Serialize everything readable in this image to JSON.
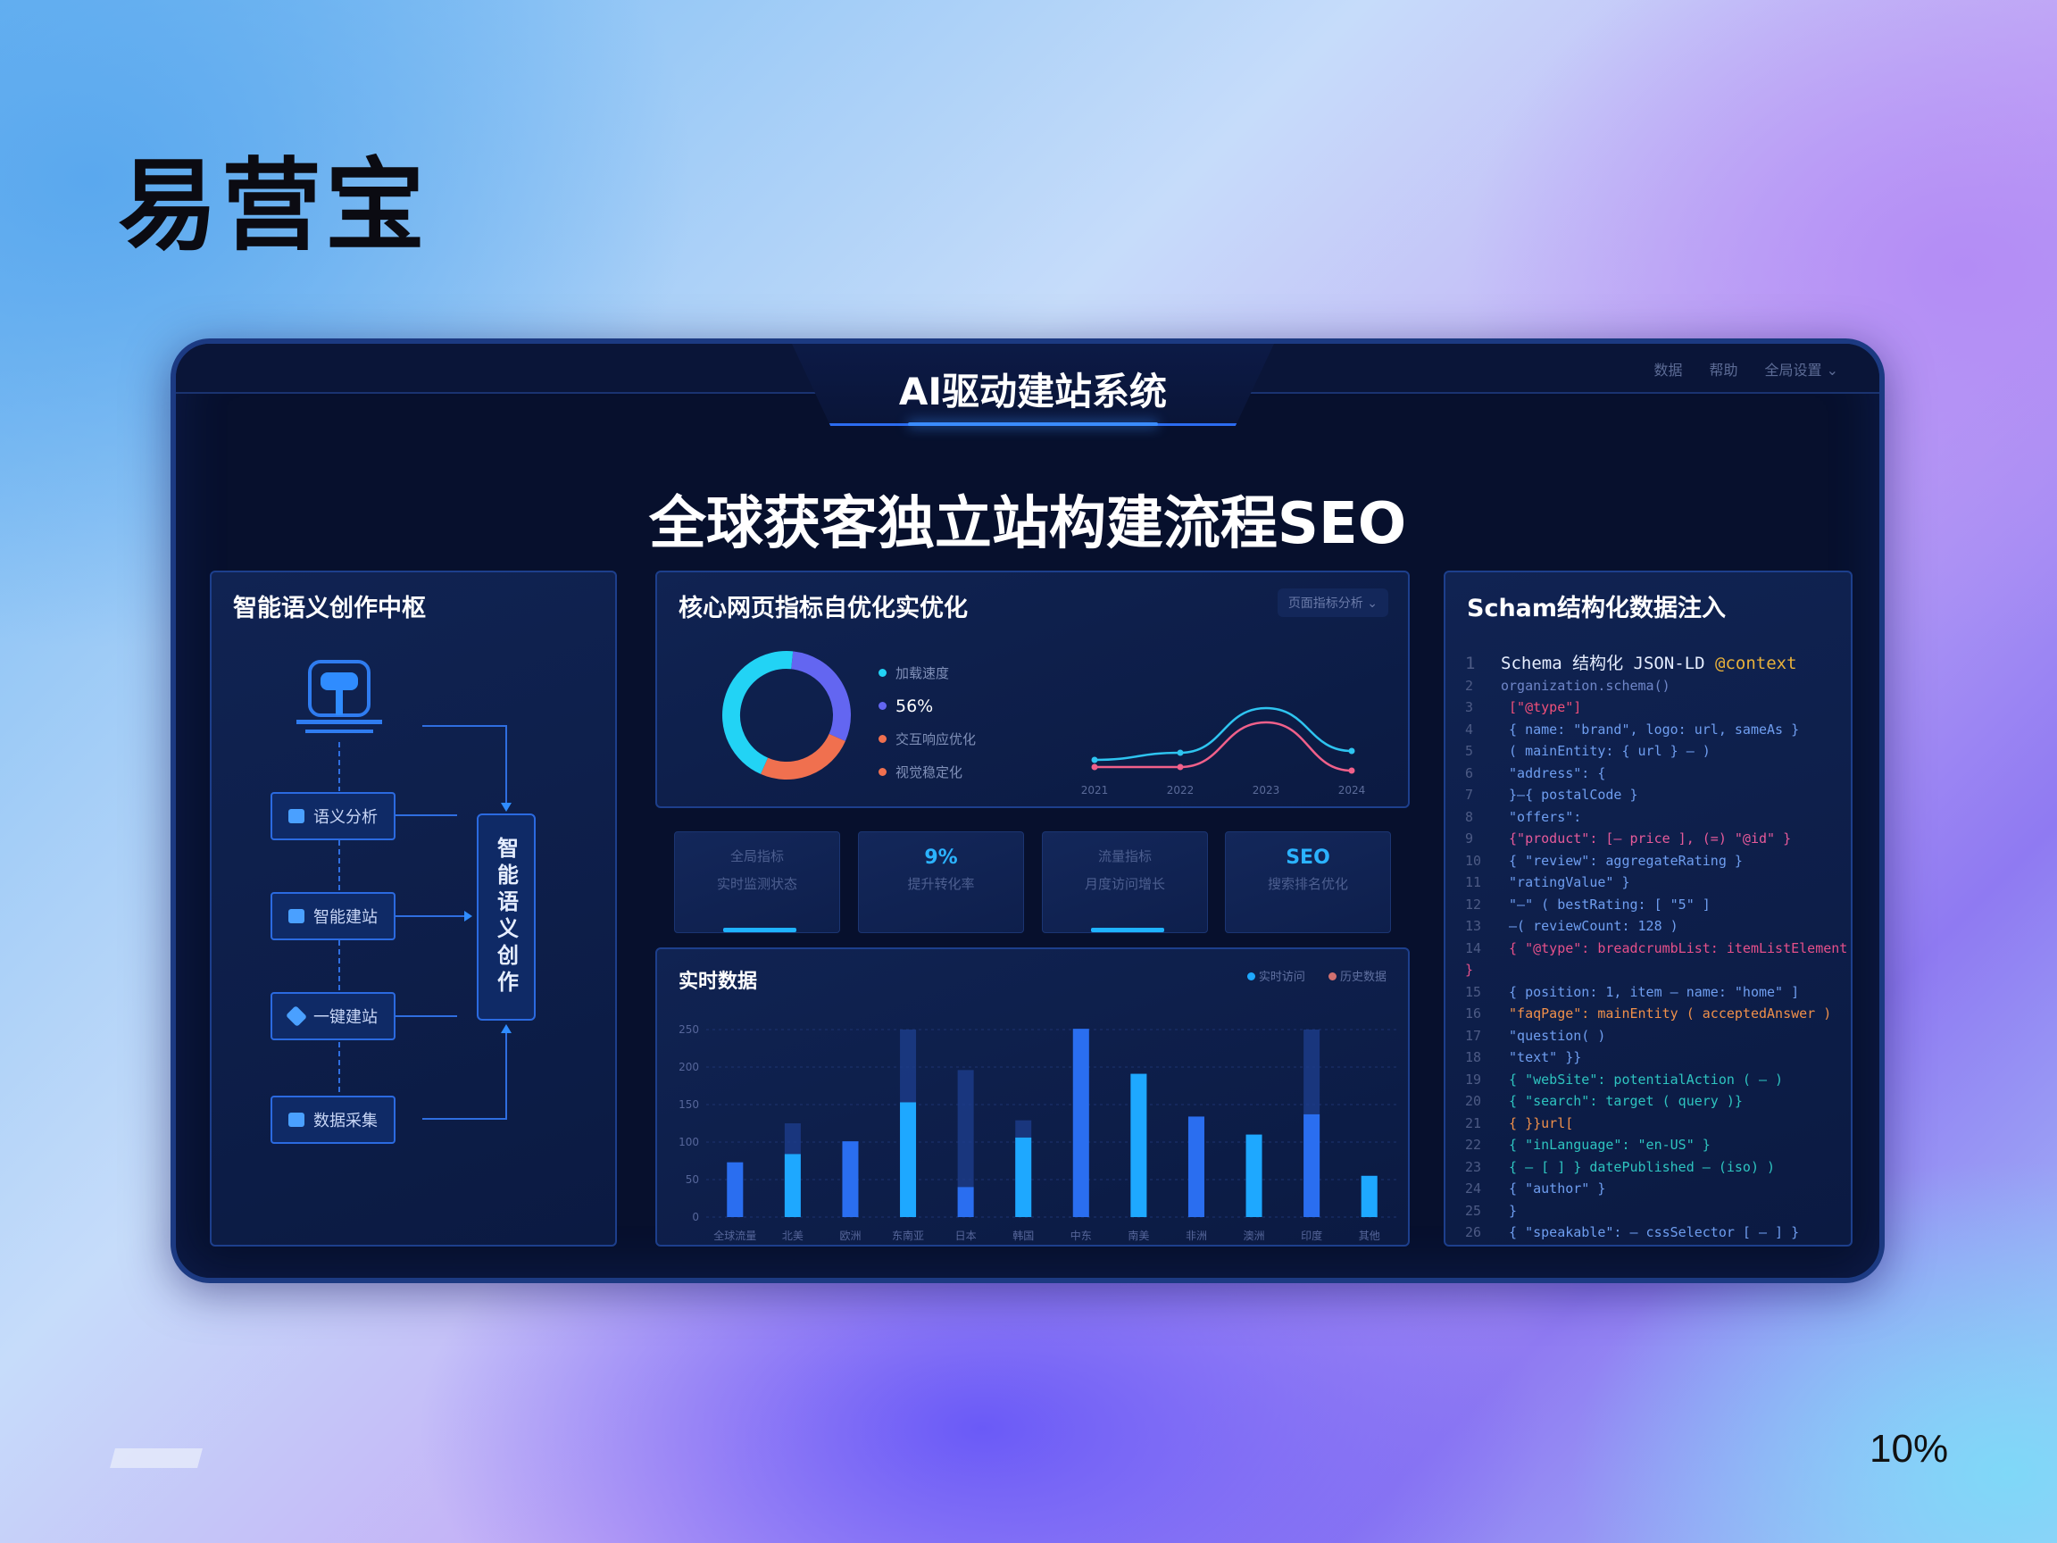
{
  "brand": "易营宝",
  "page_indicator": "10%",
  "window": {
    "title": "AI驱动建站系统",
    "meta": [
      "数据",
      "帮助",
      "全局设置"
    ],
    "headline": "全球获客独立站构建流程SEO"
  },
  "left_panel": {
    "title": "智能语义创作中枢",
    "nodes": [
      "语义分析",
      "智能建站",
      "一键建站",
      "数据采集"
    ],
    "hub_label": "智能语义创作",
    "icons": [
      "ai-chip-icon",
      "document-icon",
      "cube-icon",
      "database-icon"
    ]
  },
  "metrics_panel": {
    "title": "核心网页指标自优化实优化",
    "dropdown": "页面指标分析",
    "donut": {
      "slices": [
        {
          "label": "加载速度",
          "value": 45,
          "color": "#22d3f5"
        },
        {
          "label": "56%",
          "value": 30,
          "color": "#6366f1"
        },
        {
          "label": "交互响应优化",
          "value": 25,
          "color": "#f0704f"
        },
        {
          "label": "视觉稳定化",
          "value": 0,
          "color": "#f0704f"
        }
      ]
    },
    "line": {
      "x": [
        "2021",
        "2022",
        "2023",
        "2024"
      ],
      "series": [
        {
          "values": [
            20,
            28,
            78,
            30
          ],
          "color": "#2ec4f0"
        },
        {
          "values": [
            12,
            12,
            62,
            8
          ],
          "color": "#f0608a"
        }
      ]
    }
  },
  "kpis": [
    {
      "title": "全局指标",
      "value": "",
      "sub": "实时监测状态",
      "underline": true
    },
    {
      "title": "",
      "value": "9%",
      "sub": "提升转化率",
      "underline": false
    },
    {
      "title": "流量指标",
      "value": "",
      "sub": "月度访问增长",
      "underline": true
    },
    {
      "title": "",
      "value": "SEO",
      "sub": "搜索排名优化",
      "underline": false
    }
  ],
  "chart_data": {
    "type": "bar",
    "title": "实时数据",
    "categories": [
      "全球流量",
      "北美",
      "欧洲",
      "东南亚",
      "日本",
      "韩国",
      "中东",
      "南美",
      "非洲",
      "澳洲",
      "印度",
      "其他"
    ],
    "ylim": [
      0,
      250
    ],
    "yticks": [
      "0",
      "50",
      "100",
      "150",
      "200",
      "250"
    ],
    "series": [
      {
        "name": "实时访问",
        "values": [
          73,
          84,
          101,
          153,
          40,
          106,
          251,
          191,
          134,
          110,
          137,
          55
        ],
        "color": "#1ea8ff"
      },
      {
        "name": "历史数据",
        "values": [
          73,
          125,
          101,
          250,
          196,
          129,
          251,
          191,
          134,
          110,
          250,
          55
        ],
        "color": "#1e3f8f"
      }
    ],
    "grid": true,
    "legend": "top-right"
  },
  "schema_panel": {
    "title": "Scham结构化数据注入",
    "lines": [
      {
        "n": "1",
        "t": "Schema 结构化 JSON-LD",
        "c": "#e6eeff",
        "hl": "@context",
        "hc": "#e8b13a"
      },
      {
        "n": "2",
        "t": "organization.schema()",
        "c": "#6f86c8"
      },
      {
        "n": "3",
        "t": " [\"@type\"]",
        "c": "#f0507a"
      },
      {
        "n": "4",
        "t": " { name: \"brand\", logo: url, sameAs }",
        "c": "#6f9ef0"
      },
      {
        "n": "5",
        "t": " ( mainEntity: { url } — )",
        "c": "#6f9ef0"
      },
      {
        "n": "6",
        "t": " \"address\": {",
        "c": "#6f9ef0"
      },
      {
        "n": "7",
        "t": " }—{ postalCode }",
        "c": "#6f9ef0"
      },
      {
        "n": "8",
        "t": " \"offers\":",
        "c": "#6f9ef0"
      },
      {
        "n": "9",
        "t": " {\"product\": [— price ], (=) \"@id\" }",
        "c": "#e65a9a"
      },
      {
        "n": "10",
        "t": " { \"review\": aggregateRating }",
        "c": "#6f9ef0"
      },
      {
        "n": "11",
        "t": "   \"ratingValue\" }",
        "c": "#6f9ef0"
      },
      {
        "n": "12",
        "t": "   \"—\" ( bestRating: [ \"5\" ]",
        "c": "#6f9ef0"
      },
      {
        "n": "13",
        "t": "   —( reviewCount: 128 )",
        "c": "#6f9ef0"
      },
      {
        "n": "14",
        "t": "   { \"@type\": breadcrumbList: itemListElement }",
        "c": "#e6508a"
      },
      {
        "n": "15",
        "t": "   { position: 1, item — name: \"home\" ]",
        "c": "#6f9ef0"
      },
      {
        "n": "16",
        "t": "   \"faqPage\": mainEntity ( acceptedAnswer )",
        "c": "#f0904a"
      },
      {
        "n": "17",
        "t": "   \"question( )",
        "c": "#6f9ef0"
      },
      {
        "n": "18",
        "t": "   \"text\" }}",
        "c": "#6f9ef0"
      },
      {
        "n": "19",
        "t": "   { \"webSite\": potentialAction ( — )",
        "c": "#2ec4c0"
      },
      {
        "n": "20",
        "t": "   { \"search\": target ( query )}",
        "c": "#2ec4c0"
      },
      {
        "n": "21",
        "t": "   { }}url[",
        "c": "#f0904a"
      },
      {
        "n": "22",
        "t": "   { \"inLanguage\": \"en-US\" }",
        "c": "#2ec4c0"
      },
      {
        "n": "23",
        "t": "   { — [ ] } datePublished — (iso) )",
        "c": "#2ec4c0"
      },
      {
        "n": "24",
        "t": "   { \"author\" }",
        "c": "#6f9ef0"
      },
      {
        "n": "25",
        "t": "  }",
        "c": "#6f9ef0"
      },
      {
        "n": "26",
        "t": " { \"speakable\": — cssSelector [ — ] }",
        "c": "#6f9ef0"
      }
    ]
  }
}
